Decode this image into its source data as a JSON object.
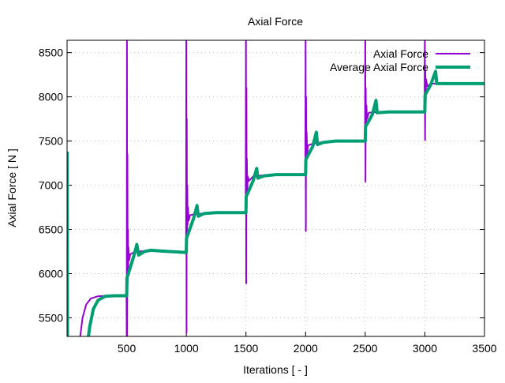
{
  "chart_data": {
    "type": "line",
    "title": "Axial Force",
    "xlabel": "Iterations [ - ]",
    "ylabel": "Axial Force [ N ]",
    "xlim": [
      0,
      3500
    ],
    "ylim": [
      5290,
      8640
    ],
    "xticks": [
      500,
      1000,
      1500,
      2000,
      2500,
      3000,
      3500
    ],
    "yticks": [
      5500,
      6000,
      6500,
      7000,
      7500,
      8000,
      8500
    ],
    "grid": true,
    "legend_position": "top-right",
    "series": [
      {
        "name": "Axial Force",
        "color": "#9400d3",
        "points": [
          [
            0,
            7380
          ],
          [
            2,
            5200
          ],
          [
            110,
            5286
          ],
          [
            130,
            5500
          ],
          [
            160,
            5650
          ],
          [
            200,
            5720
          ],
          [
            260,
            5745
          ],
          [
            350,
            5750
          ],
          [
            498,
            5750
          ],
          [
            500,
            5200
          ],
          [
            502,
            8700
          ],
          [
            504,
            5300
          ],
          [
            506,
            7350
          ],
          [
            508,
            5900
          ],
          [
            510,
            6500
          ],
          [
            512,
            6050
          ],
          [
            515,
            6300
          ],
          [
            520,
            6150
          ],
          [
            530,
            6220
          ],
          [
            560,
            6240
          ],
          [
            600,
            6250
          ],
          [
            700,
            6260
          ],
          [
            998,
            6240
          ],
          [
            1000,
            8700
          ],
          [
            1002,
            5330
          ],
          [
            1004,
            7750
          ],
          [
            1006,
            6300
          ],
          [
            1008,
            7000
          ],
          [
            1010,
            6550
          ],
          [
            1014,
            6750
          ],
          [
            1020,
            6600
          ],
          [
            1030,
            6660
          ],
          [
            1060,
            6670
          ],
          [
            1200,
            6690
          ],
          [
            1498,
            6690
          ],
          [
            1500,
            8700
          ],
          [
            1502,
            5890
          ],
          [
            1504,
            8100
          ],
          [
            1506,
            6750
          ],
          [
            1508,
            7300
          ],
          [
            1511,
            6950
          ],
          [
            1515,
            7100
          ],
          [
            1525,
            7050
          ],
          [
            1560,
            7100
          ],
          [
            1700,
            7120
          ],
          [
            1998,
            7120
          ],
          [
            2000,
            8700
          ],
          [
            2002,
            6480
          ],
          [
            2004,
            8000
          ],
          [
            2006,
            7200
          ],
          [
            2009,
            7600
          ],
          [
            2013,
            7350
          ],
          [
            2020,
            7450
          ],
          [
            2060,
            7470
          ],
          [
            2200,
            7500
          ],
          [
            2498,
            7500
          ],
          [
            2500,
            8700
          ],
          [
            2502,
            7040
          ],
          [
            2504,
            8100
          ],
          [
            2507,
            7600
          ],
          [
            2510,
            7900
          ],
          [
            2515,
            7750
          ],
          [
            2530,
            7820
          ],
          [
            2600,
            7830
          ],
          [
            2998,
            7830
          ],
          [
            3000,
            8700
          ],
          [
            3002,
            7510
          ],
          [
            3004,
            8300
          ],
          [
            3007,
            7900
          ],
          [
            3010,
            8200
          ],
          [
            3020,
            8120
          ],
          [
            3050,
            8150
          ],
          [
            3500,
            8150
          ]
        ]
      },
      {
        "name": "Average Axial Force",
        "color": "#009e73",
        "points": [
          [
            0,
            7380
          ],
          [
            3,
            5200
          ],
          [
            170,
            5200
          ],
          [
            190,
            5400
          ],
          [
            220,
            5600
          ],
          [
            260,
            5700
          ],
          [
            320,
            5745
          ],
          [
            400,
            5750
          ],
          [
            500,
            5750
          ],
          [
            502,
            5950
          ],
          [
            560,
            6200
          ],
          [
            585,
            6330
          ],
          [
            600,
            6210
          ],
          [
            650,
            6250
          ],
          [
            700,
            6265
          ],
          [
            800,
            6255
          ],
          [
            1000,
            6240
          ],
          [
            1002,
            6400
          ],
          [
            1060,
            6620
          ],
          [
            1090,
            6770
          ],
          [
            1100,
            6650
          ],
          [
            1150,
            6680
          ],
          [
            1250,
            6690
          ],
          [
            1500,
            6690
          ],
          [
            1502,
            6870
          ],
          [
            1560,
            7050
          ],
          [
            1590,
            7190
          ],
          [
            1600,
            7080
          ],
          [
            1650,
            7105
          ],
          [
            1750,
            7120
          ],
          [
            2000,
            7120
          ],
          [
            2002,
            7290
          ],
          [
            2060,
            7440
          ],
          [
            2090,
            7600
          ],
          [
            2100,
            7460
          ],
          [
            2150,
            7485
          ],
          [
            2250,
            7500
          ],
          [
            2500,
            7500
          ],
          [
            2502,
            7660
          ],
          [
            2560,
            7800
          ],
          [
            2590,
            7960
          ],
          [
            2600,
            7820
          ],
          [
            2700,
            7830
          ],
          [
            3000,
            7830
          ],
          [
            3002,
            8020
          ],
          [
            3050,
            8140
          ],
          [
            3090,
            8290
          ],
          [
            3100,
            8150
          ],
          [
            3200,
            8150
          ],
          [
            3500,
            8150
          ]
        ]
      }
    ]
  }
}
